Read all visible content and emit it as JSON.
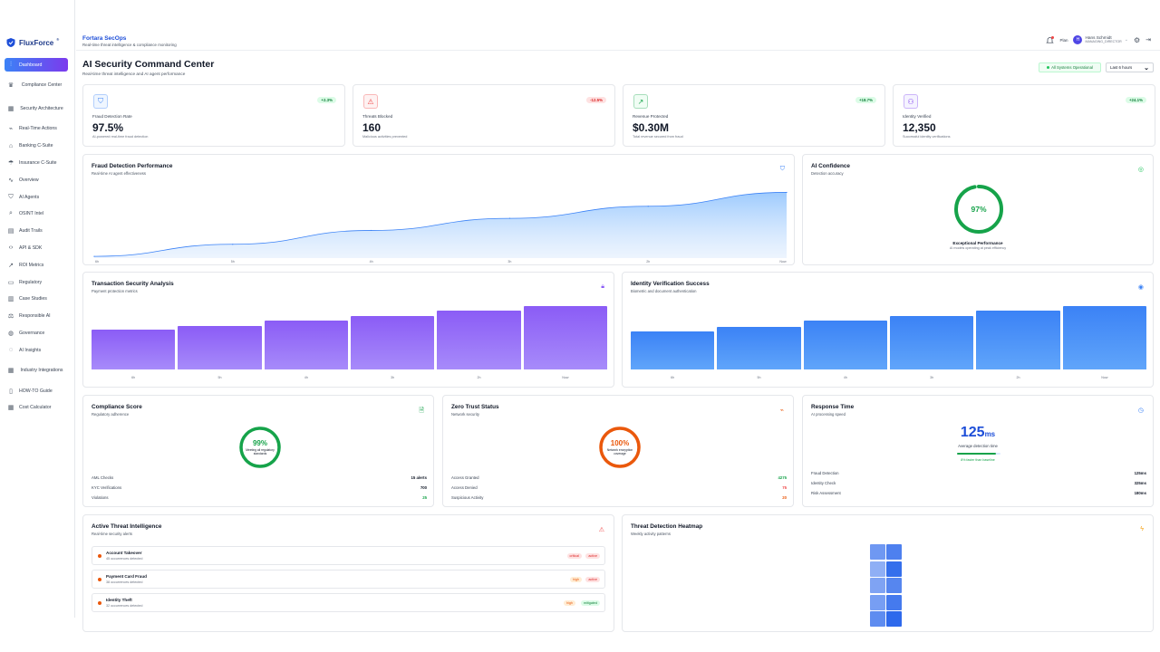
{
  "logo": {
    "name": "FluxForce",
    "mark": "®"
  },
  "sidebar": {
    "items": [
      {
        "label": "Dashboard",
        "icon": "chart-icon",
        "active": true
      },
      {
        "label": "Compliance Center",
        "icon": "crown-icon"
      },
      {
        "label": "Security Architecture",
        "icon": "building-icon"
      },
      {
        "label": "Real-Time Actions",
        "icon": "activity-icon"
      },
      {
        "label": "Banking C-Suite",
        "icon": "bank-icon"
      },
      {
        "label": "Insurance C-Suite",
        "icon": "umbrella-icon"
      },
      {
        "label": "Overview",
        "icon": "pulse-icon"
      },
      {
        "label": "AI Agents",
        "icon": "shield-icon"
      },
      {
        "label": "OSINT Intel",
        "icon": "search-icon"
      },
      {
        "label": "Audit Trails",
        "icon": "file-icon"
      },
      {
        "label": "API & SDK",
        "icon": "code-icon"
      },
      {
        "label": "ROI Metrics",
        "icon": "trend-icon"
      },
      {
        "label": "Regulatory",
        "icon": "doc-icon"
      },
      {
        "label": "Case Studies",
        "icon": "book-icon"
      },
      {
        "label": "Responsible AI",
        "icon": "scale-icon"
      },
      {
        "label": "Governance",
        "icon": "globe-icon"
      },
      {
        "label": "AI Insights",
        "icon": "chat-icon"
      },
      {
        "label": "Industry Integrations",
        "icon": "building-icon"
      },
      {
        "label": "HOW-TO Guide",
        "icon": "book-open-icon"
      },
      {
        "label": "Cost Calculator",
        "icon": "calculator-icon"
      }
    ]
  },
  "topbar": {
    "org": "Fortara SecOps",
    "tagline": "Real-time threat intelligence & compliance monitoring",
    "plan": "Plan",
    "user_initial": "H",
    "user_name": "Hans Schmidt",
    "user_role": "MANAGING_DIRECTOR"
  },
  "header": {
    "title": "AI Security Command Center",
    "subtitle": "Real-time threat intelligence and AI agent performance",
    "status": "All Systems Operational",
    "time_range": "Last 6 hours"
  },
  "kpis": [
    {
      "label": "Fraud Detection Rate",
      "value": "97.5%",
      "sub": "AI-powered real-time fraud detection",
      "change": "+2.3%",
      "dir": "up",
      "icon": "shield-icon",
      "color": "#3b82f6",
      "bg": "#eff6ff"
    },
    {
      "label": "Threats Blocked",
      "value": "160",
      "sub": "Malicious activities prevented",
      "change": "-12.5%",
      "dir": "down",
      "icon": "warning-icon",
      "color": "#ef4444",
      "bg": "#fef2f2"
    },
    {
      "label": "Revenue Protected",
      "value": "$0.30M",
      "sub": "Total revenue secured from fraud",
      "change": "+18.7%",
      "dir": "up",
      "icon": "trend-up-icon",
      "color": "#16a34a",
      "bg": "#f0fdf4"
    },
    {
      "label": "Identity Verified",
      "value": "12,350",
      "sub": "Successful identity verifications",
      "change": "+24.1%",
      "dir": "up",
      "icon": "users-icon",
      "color": "#7c3aed",
      "bg": "#f5f3ff"
    }
  ],
  "fraud_perf": {
    "title": "Fraud Detection Performance",
    "subtitle": "Real-time AI agent effectiveness"
  },
  "ai_conf": {
    "title": "AI Confidence",
    "subtitle": "Detection accuracy",
    "value": "97%",
    "pct": 97,
    "label": "Exceptional Performance",
    "sub": "AI models operating at peak efficiency"
  },
  "tx_sec": {
    "title": "Transaction Security Analysis",
    "subtitle": "Payment protection metrics"
  },
  "id_ver": {
    "title": "Identity Verification Success",
    "subtitle": "Biometric and document authentication"
  },
  "compliance": {
    "title": "Compliance Score",
    "subtitle": "Regulatory adherence",
    "value": "99%",
    "pct": 99,
    "caption": "Meeting all regulatory standards",
    "rows": [
      {
        "k": "AML Checks",
        "v": "15 alerts",
        "color": "#111827"
      },
      {
        "k": "KYC Verifications",
        "v": "700",
        "color": "#111827"
      },
      {
        "k": "Violations",
        "v": "25",
        "color": "#16a34a"
      }
    ]
  },
  "zero_trust": {
    "title": "Zero Trust Status",
    "subtitle": "Network security",
    "value": "100%",
    "pct": 100,
    "caption": "Network encryption coverage",
    "rows": [
      {
        "k": "Access Granted",
        "v": "4275",
        "color": "#16a34a"
      },
      {
        "k": "Access Denied",
        "v": "75",
        "color": "#ef4444"
      },
      {
        "k": "Suspicious Activity",
        "v": "20",
        "color": "#ea580c"
      }
    ]
  },
  "response": {
    "title": "Response Time",
    "subtitle": "AI processing speed",
    "value": "125",
    "unit": "ms",
    "label": "Average detection time",
    "note": "8% faster than baseline",
    "progress": 0.9,
    "rows": [
      {
        "k": "Fraud Detection",
        "v": "125ms"
      },
      {
        "k": "Identity Check",
        "v": "325ms"
      },
      {
        "k": "Risk Assessment",
        "v": "180ms"
      }
    ]
  },
  "threats": {
    "title": "Active Threat Intelligence",
    "subtitle": "Real-time security alerts",
    "items": [
      {
        "name": "Account Takeover",
        "occ": "45 occurrences detected",
        "sev": "critical",
        "state": "active"
      },
      {
        "name": "Payment Card Fraud",
        "occ": "38 occurrences detected",
        "sev": "high",
        "state": "active"
      },
      {
        "name": "Identity Theft",
        "occ": "32 occurrences detected",
        "sev": "high",
        "state": "mitigated"
      }
    ]
  },
  "heatmap": {
    "title": "Threat Detection Heatmap",
    "subtitle": "Weekly activity patterns",
    "cells": [
      0.55,
      0.75,
      0.35,
      0.9,
      0.45,
      0.7,
      0.5,
      0.8,
      0.65,
      0.95
    ]
  },
  "chart_data": [
    {
      "type": "area",
      "title": "Fraud Detection Performance",
      "categories": [
        "6h",
        "5h",
        "4h",
        "3h",
        "2h",
        "Now"
      ],
      "values": [
        0.5,
        4,
        8,
        11.5,
        15,
        19
      ],
      "ylim": [
        0,
        22
      ],
      "xlabel": "",
      "ylabel": "",
      "grid": false
    },
    {
      "type": "bar",
      "title": "Transaction Security Analysis",
      "categories": [
        "6h",
        "5h",
        "4h",
        "3h",
        "2h",
        "Now"
      ],
      "values": [
        60,
        66,
        74,
        81,
        89,
        96
      ],
      "ylim": [
        0,
        100
      ],
      "color": "#8b5cf6"
    },
    {
      "type": "bar",
      "title": "Identity Verification Success",
      "categories": [
        "6h",
        "5h",
        "4h",
        "3h",
        "2h",
        "Now"
      ],
      "values": [
        58,
        65,
        74,
        81,
        89,
        96
      ],
      "ylim": [
        0,
        100
      ],
      "color": "#3b82f6"
    }
  ]
}
